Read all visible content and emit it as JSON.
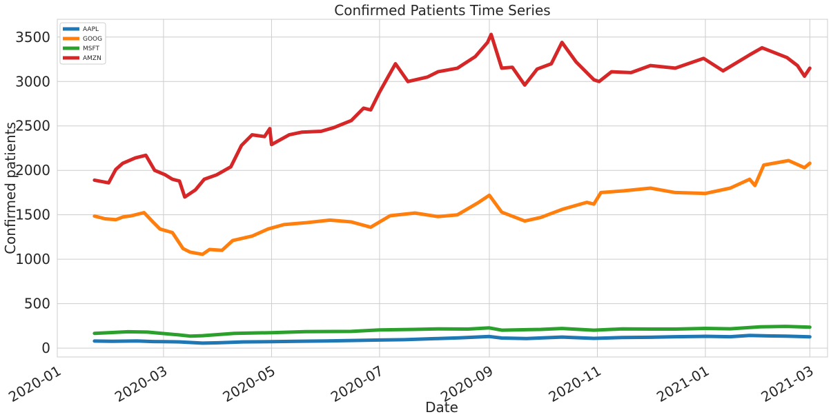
{
  "chart_data": {
    "type": "line",
    "title": "Confirmed Patients Time Series",
    "xlabel": "Date",
    "ylabel": "Confirmed patients",
    "xlim": [
      "2020-01-01",
      "2021-03-11"
    ],
    "ylim": [
      -100,
      3700
    ],
    "x_ticks": [
      "2020-01",
      "2020-03",
      "2020-05",
      "2020-07",
      "2020-09",
      "2020-11",
      "2021-01",
      "2021-03"
    ],
    "x_tick_dates": [
      "2020-01-01",
      "2020-03-01",
      "2020-05-01",
      "2020-07-01",
      "2020-09-01",
      "2020-11-01",
      "2021-01-01",
      "2021-03-01"
    ],
    "y_ticks": [
      "0",
      "500",
      "1000",
      "1500",
      "2000",
      "2500",
      "3000",
      "3500"
    ],
    "y_tick_values": [
      0,
      500,
      1000,
      1500,
      2000,
      2500,
      3000,
      3500
    ],
    "grid": true,
    "legend_position": "top-left",
    "series": [
      {
        "name": "AAPL",
        "color": "#1f77b4",
        "points": [
          [
            "2020-01-22",
            79
          ],
          [
            "2020-02-01",
            77
          ],
          [
            "2020-02-15",
            80
          ],
          [
            "2020-02-24",
            74
          ],
          [
            "2020-03-01",
            72
          ],
          [
            "2020-03-10",
            70
          ],
          [
            "2020-03-23",
            56
          ],
          [
            "2020-04-01",
            60
          ],
          [
            "2020-04-15",
            70
          ],
          [
            "2020-05-01",
            72
          ],
          [
            "2020-05-15",
            77
          ],
          [
            "2020-06-01",
            80
          ],
          [
            "2020-06-15",
            85
          ],
          [
            "2020-07-01",
            91
          ],
          [
            "2020-07-15",
            95
          ],
          [
            "2020-08-01",
            106
          ],
          [
            "2020-08-15",
            115
          ],
          [
            "2020-09-01",
            130
          ],
          [
            "2020-09-08",
            113
          ],
          [
            "2020-09-22",
            107
          ],
          [
            "2020-10-12",
            124
          ],
          [
            "2020-10-30",
            109
          ],
          [
            "2020-11-15",
            119
          ],
          [
            "2020-12-01",
            122
          ],
          [
            "2020-12-15",
            128
          ],
          [
            "2021-01-01",
            133
          ],
          [
            "2021-01-15",
            128
          ],
          [
            "2021-01-26",
            143
          ],
          [
            "2021-02-05",
            137
          ],
          [
            "2021-02-15",
            135
          ],
          [
            "2021-03-01",
            127
          ]
        ]
      },
      {
        "name": "GOOG",
        "color": "#ff7f0e",
        "points": [
          [
            "2020-01-22",
            1485
          ],
          [
            "2020-01-28",
            1455
          ],
          [
            "2020-02-03",
            1445
          ],
          [
            "2020-02-07",
            1475
          ],
          [
            "2020-02-12",
            1490
          ],
          [
            "2020-02-19",
            1525
          ],
          [
            "2020-02-24",
            1420
          ],
          [
            "2020-02-28",
            1340
          ],
          [
            "2020-03-06",
            1300
          ],
          [
            "2020-03-12",
            1120
          ],
          [
            "2020-03-16",
            1080
          ],
          [
            "2020-03-23",
            1055
          ],
          [
            "2020-03-27",
            1110
          ],
          [
            "2020-04-03",
            1100
          ],
          [
            "2020-04-09",
            1210
          ],
          [
            "2020-04-20",
            1260
          ],
          [
            "2020-04-29",
            1340
          ],
          [
            "2020-05-08",
            1390
          ],
          [
            "2020-05-20",
            1410
          ],
          [
            "2020-06-03",
            1440
          ],
          [
            "2020-06-15",
            1420
          ],
          [
            "2020-06-26",
            1360
          ],
          [
            "2020-07-07",
            1490
          ],
          [
            "2020-07-21",
            1520
          ],
          [
            "2020-08-03",
            1480
          ],
          [
            "2020-08-14",
            1500
          ],
          [
            "2020-08-26",
            1640
          ],
          [
            "2020-09-01",
            1720
          ],
          [
            "2020-09-08",
            1530
          ],
          [
            "2020-09-21",
            1430
          ],
          [
            "2020-09-30",
            1470
          ],
          [
            "2020-10-12",
            1560
          ],
          [
            "2020-10-26",
            1640
          ],
          [
            "2020-10-30",
            1620
          ],
          [
            "2020-11-03",
            1750
          ],
          [
            "2020-11-16",
            1770
          ],
          [
            "2020-12-01",
            1800
          ],
          [
            "2020-12-15",
            1750
          ],
          [
            "2021-01-01",
            1740
          ],
          [
            "2021-01-15",
            1800
          ],
          [
            "2021-01-26",
            1900
          ],
          [
            "2021-01-29",
            1830
          ],
          [
            "2021-02-03",
            2060
          ],
          [
            "2021-02-17",
            2110
          ],
          [
            "2021-02-26",
            2030
          ],
          [
            "2021-03-01",
            2080
          ]
        ]
      },
      {
        "name": "MSFT",
        "color": "#2ca02c",
        "points": [
          [
            "2020-01-22",
            166
          ],
          [
            "2020-02-10",
            184
          ],
          [
            "2020-02-21",
            180
          ],
          [
            "2020-03-09",
            150
          ],
          [
            "2020-03-16",
            135
          ],
          [
            "2020-03-23",
            140
          ],
          [
            "2020-04-10",
            165
          ],
          [
            "2020-05-01",
            174
          ],
          [
            "2020-05-20",
            185
          ],
          [
            "2020-06-15",
            188
          ],
          [
            "2020-07-01",
            204
          ],
          [
            "2020-07-20",
            210
          ],
          [
            "2020-08-03",
            216
          ],
          [
            "2020-08-20",
            214
          ],
          [
            "2020-09-01",
            227
          ],
          [
            "2020-09-08",
            202
          ],
          [
            "2020-09-30",
            210
          ],
          [
            "2020-10-12",
            221
          ],
          [
            "2020-10-30",
            202
          ],
          [
            "2020-11-15",
            216
          ],
          [
            "2020-12-01",
            214
          ],
          [
            "2020-12-15",
            214
          ],
          [
            "2021-01-01",
            222
          ],
          [
            "2021-01-15",
            217
          ],
          [
            "2021-02-01",
            239
          ],
          [
            "2021-02-15",
            244
          ],
          [
            "2021-03-01",
            236
          ]
        ]
      },
      {
        "name": "AMZN",
        "color": "#d62728",
        "points": [
          [
            "2020-01-22",
            1890
          ],
          [
            "2020-01-30",
            1860
          ],
          [
            "2020-02-03",
            2010
          ],
          [
            "2020-02-07",
            2080
          ],
          [
            "2020-02-14",
            2140
          ],
          [
            "2020-02-20",
            2170
          ],
          [
            "2020-02-25",
            2000
          ],
          [
            "2020-03-02",
            1950
          ],
          [
            "2020-03-06",
            1900
          ],
          [
            "2020-03-10",
            1880
          ],
          [
            "2020-03-13",
            1700
          ],
          [
            "2020-03-19",
            1780
          ],
          [
            "2020-03-24",
            1900
          ],
          [
            "2020-03-31",
            1950
          ],
          [
            "2020-04-08",
            2040
          ],
          [
            "2020-04-14",
            2280
          ],
          [
            "2020-04-20",
            2400
          ],
          [
            "2020-04-27",
            2380
          ],
          [
            "2020-04-30",
            2470
          ],
          [
            "2020-05-01",
            2290
          ],
          [
            "2020-05-11",
            2400
          ],
          [
            "2020-05-18",
            2430
          ],
          [
            "2020-05-29",
            2440
          ],
          [
            "2020-06-05",
            2480
          ],
          [
            "2020-06-15",
            2560
          ],
          [
            "2020-06-22",
            2700
          ],
          [
            "2020-06-26",
            2680
          ],
          [
            "2020-07-01",
            2880
          ],
          [
            "2020-07-06",
            3060
          ],
          [
            "2020-07-10",
            3200
          ],
          [
            "2020-07-17",
            3000
          ],
          [
            "2020-07-28",
            3050
          ],
          [
            "2020-08-03",
            3110
          ],
          [
            "2020-08-14",
            3150
          ],
          [
            "2020-08-24",
            3280
          ],
          [
            "2020-08-31",
            3440
          ],
          [
            "2020-09-02",
            3530
          ],
          [
            "2020-09-08",
            3150
          ],
          [
            "2020-09-14",
            3160
          ],
          [
            "2020-09-21",
            2960
          ],
          [
            "2020-09-28",
            3140
          ],
          [
            "2020-10-06",
            3200
          ],
          [
            "2020-10-12",
            3440
          ],
          [
            "2020-10-20",
            3220
          ],
          [
            "2020-10-30",
            3020
          ],
          [
            "2020-11-02",
            3000
          ],
          [
            "2020-11-09",
            3110
          ],
          [
            "2020-11-20",
            3100
          ],
          [
            "2020-12-01",
            3180
          ],
          [
            "2020-12-15",
            3150
          ],
          [
            "2020-12-31",
            3260
          ],
          [
            "2021-01-11",
            3120
          ],
          [
            "2021-01-26",
            3300
          ],
          [
            "2021-02-02",
            3380
          ],
          [
            "2021-02-16",
            3270
          ],
          [
            "2021-02-22",
            3180
          ],
          [
            "2021-02-26",
            3060
          ],
          [
            "2021-03-01",
            3150
          ]
        ]
      }
    ]
  }
}
